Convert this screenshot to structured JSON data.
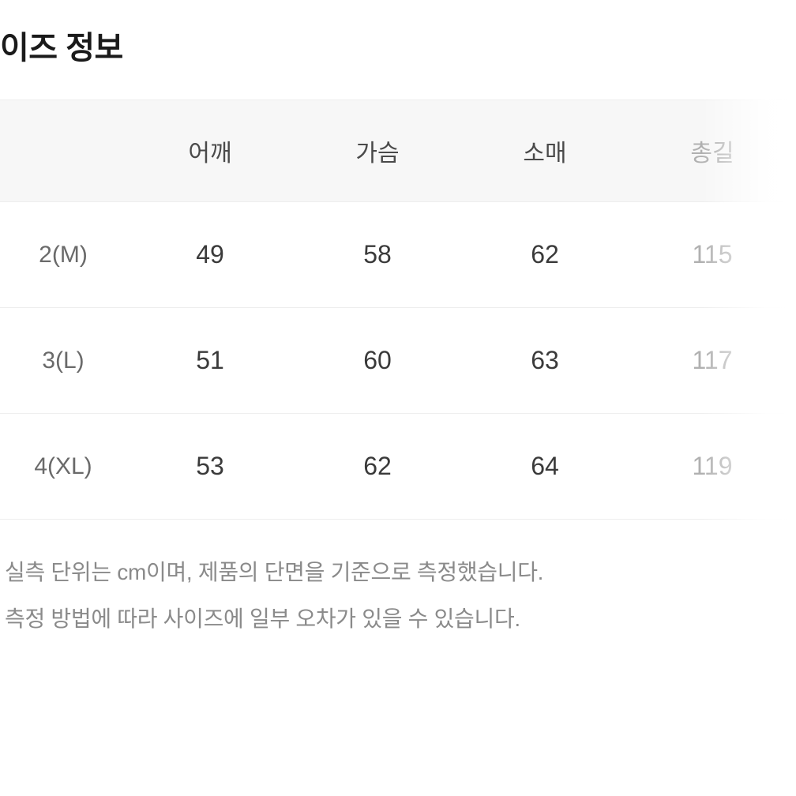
{
  "title": "이즈 정보",
  "table": {
    "columns": [
      "",
      "어깨",
      "가슴",
      "소매",
      "총길"
    ],
    "rows": [
      {
        "size": "2(M)",
        "values": [
          "49",
          "58",
          "62",
          "115"
        ]
      },
      {
        "size": "3(L)",
        "values": [
          "51",
          "60",
          "63",
          "117"
        ]
      },
      {
        "size": "4(XL)",
        "values": [
          "53",
          "62",
          "64",
          "119"
        ]
      }
    ],
    "header_bg": "#f7f7f7",
    "border_color": "#eeeeee",
    "text_color": "#3a3a3a",
    "size_label_color": "#6a6a6a",
    "header_text_color": "#4a4a4a",
    "faded_text_color": "#b0b0b0"
  },
  "notes": [
    "실측 단위는 cm이며, 제품의 단면을 기준으로 측정했습니다.",
    "측정 방법에 따라 사이즈에 일부 오차가 있을 수 있습니다."
  ],
  "typography": {
    "title_fontsize": 40,
    "header_fontsize": 30,
    "cell_fontsize": 32,
    "note_fontsize": 28
  }
}
